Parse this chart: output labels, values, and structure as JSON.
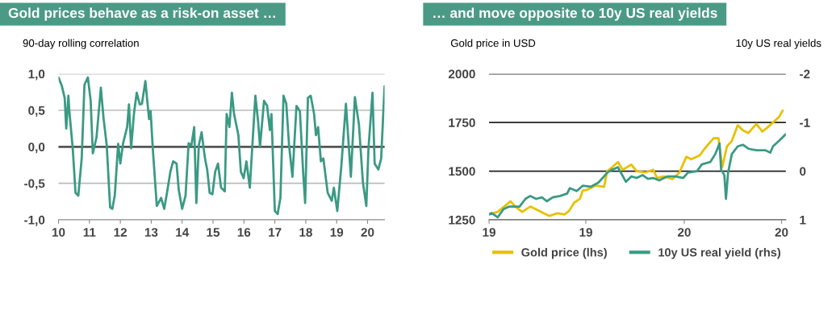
{
  "chart_data": [
    {
      "type": "line",
      "title": "Gold prices behave as a risk-on asset …",
      "ylabel": "90-day rolling correlation",
      "xlim": [
        10,
        20.55
      ],
      "xticks": [
        10,
        11,
        12,
        13,
        14,
        15,
        16,
        17,
        18,
        19,
        20
      ],
      "ylim": [
        -1,
        1
      ],
      "yticks": [
        {
          "value": -1,
          "label": "-1,0"
        },
        {
          "value": -0.5,
          "label": "-0,5"
        },
        {
          "value": 0,
          "label": "0,0"
        },
        {
          "value": 0.5,
          "label": "0,5"
        },
        {
          "value": 1,
          "label": "1,0"
        }
      ],
      "grid": "y",
      "legend": false,
      "ref_lines": [
        {
          "axis": "y",
          "value": 0,
          "color": "#555555"
        }
      ],
      "series": [
        {
          "color": "#3a9a84",
          "x": [
            10.0,
            10.11,
            10.2,
            10.25,
            10.32,
            10.35,
            10.46,
            10.55,
            10.64,
            10.75,
            10.84,
            10.95,
            11.04,
            11.11,
            11.23,
            11.37,
            11.46,
            11.56,
            11.67,
            11.74,
            11.82,
            11.93,
            12.0,
            12.09,
            12.22,
            12.28,
            12.35,
            12.44,
            12.53,
            12.63,
            12.7,
            12.81,
            12.93,
            12.98,
            13.05,
            13.18,
            13.32,
            13.42,
            13.51,
            13.62,
            13.71,
            13.82,
            13.89,
            14.0,
            14.11,
            14.21,
            14.3,
            14.39,
            14.46,
            14.54,
            14.63,
            14.74,
            14.81,
            14.89,
            14.98,
            15.07,
            15.16,
            15.26,
            15.38,
            15.44,
            15.53,
            15.61,
            15.68,
            15.82,
            15.9,
            15.99,
            16.08,
            16.19,
            16.37,
            16.46,
            16.52,
            16.65,
            16.75,
            16.84,
            16.89,
            17.0,
            17.09,
            17.18,
            17.28,
            17.37,
            17.46,
            17.57,
            17.7,
            17.81,
            17.92,
            17.98,
            18.07,
            18.16,
            18.27,
            18.33,
            18.4,
            18.49,
            18.57,
            18.71,
            18.84,
            18.91,
            19.02,
            19.15,
            19.3,
            19.46,
            19.59,
            19.72,
            19.85,
            19.96,
            20.03,
            20.16,
            20.23,
            20.35,
            20.44,
            20.55
          ],
          "values": [
            0.95,
            0.83,
            0.67,
            0.25,
            0.7,
            0.49,
            -0.02,
            -0.63,
            -0.67,
            -0.16,
            0.85,
            0.95,
            0.63,
            -0.09,
            0.13,
            0.81,
            0.38,
            0.02,
            -0.83,
            -0.85,
            -0.67,
            0.04,
            -0.23,
            0.05,
            0.27,
            0.58,
            -0.02,
            0.45,
            0.74,
            0.58,
            0.59,
            0.9,
            0.38,
            0.49,
            -0.02,
            -0.81,
            -0.7,
            -0.85,
            -0.63,
            -0.34,
            -0.2,
            -0.23,
            -0.59,
            -0.85,
            -0.67,
            0.05,
            0.02,
            0.27,
            -0.77,
            0.02,
            0.2,
            -0.16,
            -0.31,
            -0.63,
            -0.65,
            -0.34,
            -0.23,
            -0.56,
            -0.61,
            0.45,
            0.27,
            0.74,
            0.45,
            0.16,
            -0.34,
            -0.43,
            -0.2,
            -0.56,
            0.7,
            0.34,
            0.0,
            0.63,
            0.56,
            0.23,
            0.45,
            -0.88,
            -0.92,
            -0.7,
            0.7,
            0.59,
            0.02,
            -0.41,
            0.56,
            0.49,
            -0.38,
            -0.77,
            0.67,
            0.7,
            0.45,
            0.16,
            0.27,
            -0.2,
            -0.16,
            -0.63,
            -0.74,
            -0.56,
            -0.88,
            -0.27,
            0.59,
            -0.41,
            0.68,
            0.31,
            -0.49,
            -0.81,
            -0.02,
            0.74,
            -0.23,
            -0.31,
            -0.16,
            0.83
          ]
        }
      ]
    },
    {
      "type": "line",
      "title": "… and move opposite to 10y US real yields",
      "ylabel": "Gold price in USD",
      "y2label": "10y US real yields",
      "xlim": [
        "2019-01-01",
        "2020-07-09"
      ],
      "xticks": [
        {
          "value": "2019-01-01",
          "label": "19"
        },
        {
          "value": "2019-07-01",
          "label": "19"
        },
        {
          "value": "2020-01-01",
          "label": "20"
        },
        {
          "value": "2020-07-01",
          "label": "20"
        }
      ],
      "ylim": [
        1250,
        2000
      ],
      "yticks": [
        1250,
        1500,
        1750,
        2000
      ],
      "y2lim": [
        1,
        -2
      ],
      "y2ticks": [
        1,
        0,
        -1,
        -2
      ],
      "grid": "y",
      "legend": "bottom",
      "series": [
        {
          "name": "Gold price (lhs)",
          "color": "#e8c000",
          "x": [
            "2019-01-01",
            "2019-01-17",
            "2019-02-01",
            "2019-02-10",
            "2019-02-19",
            "2019-03-04",
            "2019-03-19",
            "2019-03-30",
            "2019-04-13",
            "2019-04-24",
            "2019-05-09",
            "2019-05-22",
            "2019-05-31",
            "2019-06-09",
            "2019-06-20",
            "2019-06-25",
            "2019-07-04",
            "2019-07-19",
            "2019-08-04",
            "2019-08-10",
            "2019-08-19",
            "2019-08-30",
            "2019-09-08",
            "2019-09-24",
            "2019-10-04",
            "2019-10-20",
            "2019-11-04",
            "2019-11-11",
            "2019-11-24",
            "2019-12-10",
            "2019-12-23",
            "2020-01-05",
            "2020-01-14",
            "2020-01-30",
            "2020-02-08",
            "2020-02-25",
            "2020-03-05",
            "2020-03-12",
            "2020-03-21",
            "2020-03-30",
            "2020-04-10",
            "2020-04-20",
            "2020-04-30",
            "2020-05-15",
            "2020-05-26",
            "2020-06-04",
            "2020-06-15",
            "2020-06-26",
            "2020-07-03"
          ],
          "values": [
            1277,
            1291,
            1324,
            1345,
            1318,
            1291,
            1318,
            1304,
            1284,
            1270,
            1284,
            1277,
            1297,
            1338,
            1358,
            1399,
            1405,
            1426,
            1419,
            1500,
            1520,
            1547,
            1507,
            1534,
            1500,
            1493,
            1507,
            1466,
            1473,
            1459,
            1493,
            1574,
            1561,
            1581,
            1615,
            1669,
            1669,
            1520,
            1628,
            1655,
            1736,
            1709,
            1696,
            1743,
            1703,
            1723,
            1750,
            1777,
            1811
          ]
        },
        {
          "name": "10y US real yield (rhs)",
          "color": "#3a9a84",
          "axis": "y2",
          "x": [
            "2019-01-01",
            "2019-01-06",
            "2019-01-17",
            "2019-01-28",
            "2019-02-07",
            "2019-02-27",
            "2019-03-10",
            "2019-03-19",
            "2019-03-30",
            "2019-04-10",
            "2019-04-19",
            "2019-04-30",
            "2019-05-14",
            "2019-05-27",
            "2019-06-01",
            "2019-06-14",
            "2019-06-25",
            "2019-07-10",
            "2019-07-24",
            "2019-08-04",
            "2019-08-10",
            "2019-08-19",
            "2019-08-30",
            "2019-09-14",
            "2019-09-24",
            "2019-10-04",
            "2019-10-15",
            "2019-10-25",
            "2019-11-04",
            "2019-11-15",
            "2019-11-30",
            "2019-12-16",
            "2019-12-30",
            "2020-01-08",
            "2020-01-25",
            "2020-02-03",
            "2020-02-19",
            "2020-02-28",
            "2020-03-07",
            "2020-03-10",
            "2020-03-16",
            "2020-03-19",
            "2020-03-23",
            "2020-03-30",
            "2020-04-10",
            "2020-04-20",
            "2020-04-30",
            "2020-05-15",
            "2020-05-31",
            "2020-06-10",
            "2020-06-15",
            "2020-06-26",
            "2020-07-09"
          ],
          "values": [
            0.89,
            0.86,
            0.95,
            0.78,
            0.73,
            0.73,
            0.57,
            0.51,
            0.57,
            0.54,
            0.62,
            0.54,
            0.51,
            0.46,
            0.35,
            0.41,
            0.3,
            0.32,
            0.24,
            0.11,
            0.03,
            -0.03,
            -0.08,
            0.22,
            0.11,
            0.14,
            0.08,
            0.16,
            0.14,
            0.19,
            0.11,
            0.11,
            0.14,
            0.03,
            0.0,
            -0.14,
            -0.19,
            -0.35,
            -0.57,
            -0.03,
            0.08,
            0.57,
            0.03,
            -0.35,
            -0.51,
            -0.54,
            -0.46,
            -0.43,
            -0.43,
            -0.38,
            -0.51,
            -0.62,
            -0.76
          ]
        }
      ]
    }
  ]
}
